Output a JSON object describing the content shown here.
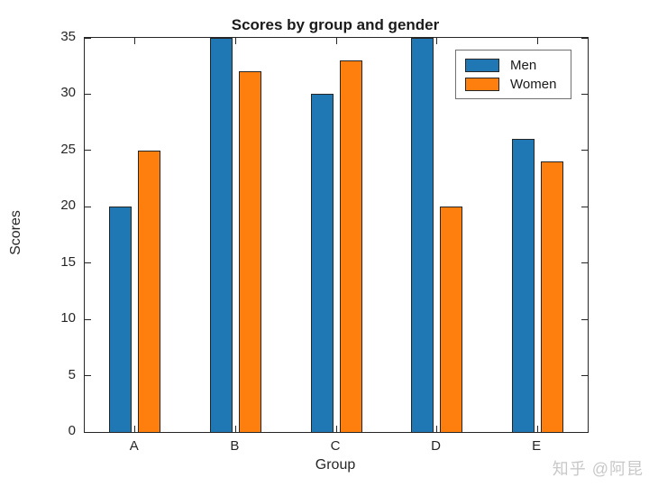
{
  "watermark": "知乎 @阿昆",
  "chart_data": {
    "type": "bar",
    "title": "Scores by group and gender",
    "xlabel": "Group",
    "ylabel": "Scores",
    "categories": [
      "A",
      "B",
      "C",
      "D",
      "E"
    ],
    "series": [
      {
        "name": "Men",
        "color": "#1f77b4",
        "values": [
          20,
          35,
          30,
          35,
          26
        ]
      },
      {
        "name": "Women",
        "color": "#ff7f0e",
        "values": [
          25,
          32,
          33,
          20,
          24
        ]
      }
    ],
    "ylim": [
      0,
      35
    ],
    "yticks": [
      0,
      5,
      10,
      15,
      20,
      25,
      30,
      35
    ],
    "grid": false,
    "legend_position": "upper right",
    "bar_edge_color": "#262626",
    "axes_box": true
  }
}
